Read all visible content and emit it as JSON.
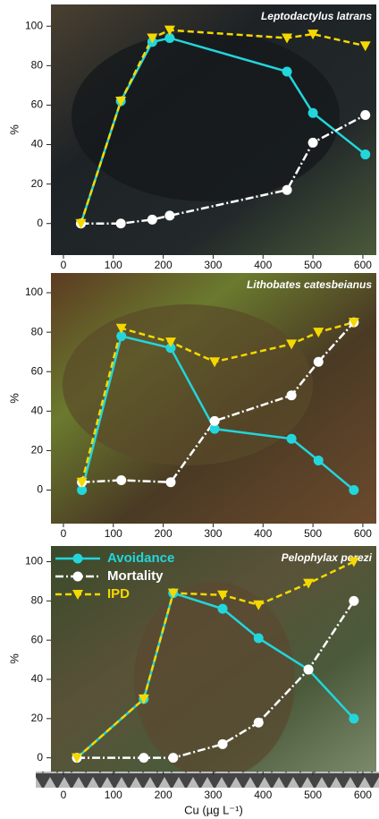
{
  "chart_data": [
    {
      "type": "line",
      "title": "Leptodactylus latrans",
      "ylabel": "%",
      "x": [
        35,
        115,
        178,
        213,
        448,
        500,
        605
      ],
      "series": [
        {
          "color": "#22d6dc",
          "marker": "circle",
          "values": [
            0,
            62,
            92,
            94,
            77,
            56,
            35
          ]
        },
        {
          "color": "#ffffff",
          "marker": "circle",
          "values": [
            0,
            0,
            2,
            4,
            17,
            41,
            55
          ]
        },
        {
          "color": "#f5d800",
          "marker": "triangle",
          "values": [
            0,
            62,
            94,
            98,
            94,
            96,
            90
          ]
        }
      ],
      "xlim": [
        -25,
        627
      ],
      "ylim": [
        -16,
        111
      ],
      "xticks": [
        0,
        100,
        200,
        300,
        400,
        500,
        600
      ],
      "yticks": [
        0,
        20,
        40,
        60,
        80,
        100
      ]
    },
    {
      "type": "line",
      "title": "Lithobates catesbeianus",
      "ylabel": "%",
      "x": [
        37,
        116,
        215,
        303,
        457,
        511,
        582
      ],
      "series": [
        {
          "color": "#22d6dc",
          "marker": "circle",
          "values": [
            0,
            78,
            72,
            31,
            26,
            15,
            0
          ]
        },
        {
          "color": "#ffffff",
          "marker": "circle",
          "values": [
            4,
            5,
            4,
            35,
            48,
            65,
            85
          ]
        },
        {
          "color": "#f5d800",
          "marker": "triangle",
          "values": [
            4,
            82,
            75,
            65,
            74,
            80,
            85
          ]
        }
      ],
      "xlim": [
        -25,
        627
      ],
      "ylim": [
        -17,
        110
      ],
      "xticks": [
        0,
        100,
        200,
        300,
        400,
        500,
        600
      ],
      "yticks": [
        0,
        20,
        40,
        60,
        80,
        100
      ]
    },
    {
      "type": "line",
      "title": "Pelophylax perezi",
      "ylabel": "%",
      "xlabel": "Cu (µg L⁻¹)",
      "x": [
        27,
        161,
        220,
        319,
        391,
        491,
        582
      ],
      "series": [
        {
          "name": "Avoidance",
          "color": "#22d6dc",
          "marker": "circle",
          "values": [
            0,
            30,
            84,
            76,
            61,
            45,
            20
          ]
        },
        {
          "name": "Mortality",
          "color": "#ffffff",
          "marker": "circle",
          "values": [
            0,
            0,
            0,
            7,
            18,
            45,
            80
          ]
        },
        {
          "name": "IPD",
          "color": "#f5d800",
          "marker": "triangle",
          "values": [
            0,
            30,
            84,
            83,
            78,
            89,
            100
          ]
        }
      ],
      "xlim": [
        -25,
        627
      ],
      "ylim": [
        -7,
        108
      ],
      "xticks": [
        0,
        100,
        200,
        300,
        400,
        500,
        600
      ],
      "yticks": [
        0,
        20,
        40,
        60,
        80,
        100
      ],
      "legend": "upper left"
    }
  ]
}
